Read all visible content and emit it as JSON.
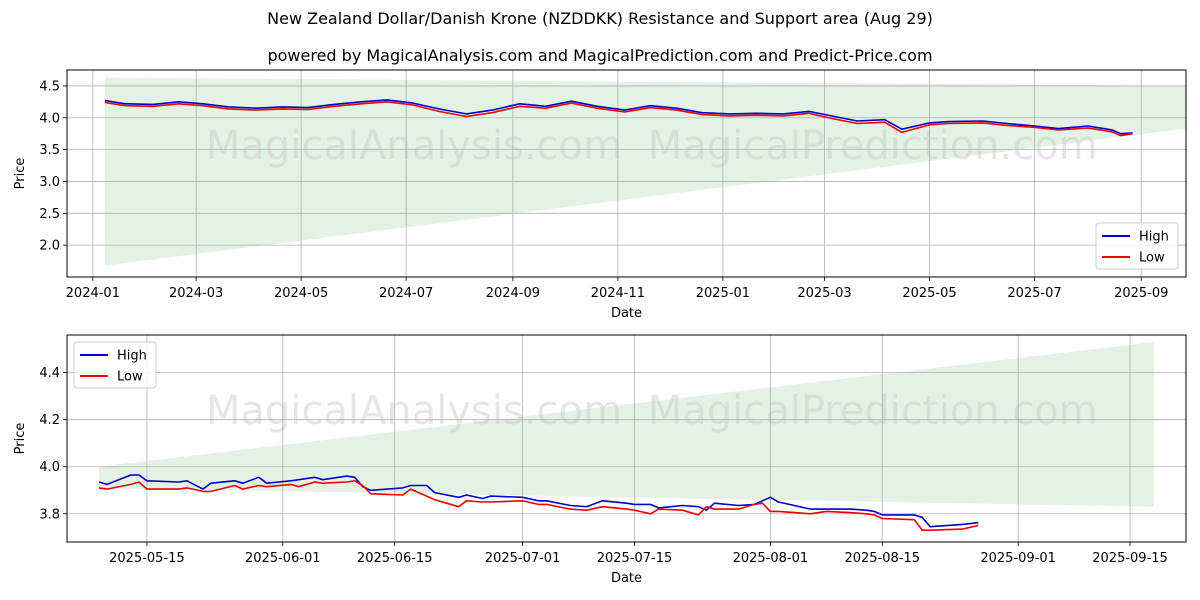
{
  "title": "New Zealand Dollar/Danish Krone (NZDDKK) Resistance and Support area (Aug 29)",
  "subtitle": "powered by MagicalAnalysis.com and MagicalPrediction.com and Predict-Price.com",
  "watermarks": [
    "MagicalAnalysis.com",
    "MagicalPrediction.com"
  ],
  "colors": {
    "high": "#0000cc",
    "low": "#ee0000",
    "band": "#c8e6c9"
  },
  "chart_data": [
    {
      "type": "line",
      "xlabel": "Date",
      "ylabel": "Price",
      "xlim": [
        "2023-12-17",
        "2025-09-27"
      ],
      "ylim": [
        1.5,
        4.75
      ],
      "x_ticks": [
        "2024-01",
        "2024-03",
        "2024-05",
        "2024-07",
        "2024-09",
        "2024-11",
        "2025-01",
        "2025-03",
        "2025-05",
        "2025-07",
        "2025-09"
      ],
      "y_ticks": [
        2.0,
        2.5,
        3.0,
        3.5,
        4.0,
        4.5
      ],
      "grid": true,
      "legend_position": "lower-right",
      "band": {
        "x_start": "2024-01-08",
        "x_end": "2025-09-27",
        "upper_start": 4.63,
        "upper_end": 4.5,
        "lower_start": 1.68,
        "lower_end": 3.83
      },
      "series": [
        {
          "name": "High",
          "points": [
            [
              "2024-01-08",
              4.27
            ],
            [
              "2024-01-20",
              4.22
            ],
            [
              "2024-02-05",
              4.21
            ],
            [
              "2024-02-20",
              4.25
            ],
            [
              "2024-03-05",
              4.22
            ],
            [
              "2024-03-20",
              4.17
            ],
            [
              "2024-04-05",
              4.15
            ],
            [
              "2024-04-20",
              4.17
            ],
            [
              "2024-05-05",
              4.16
            ],
            [
              "2024-05-20",
              4.21
            ],
            [
              "2024-06-05",
              4.25
            ],
            [
              "2024-06-20",
              4.28
            ],
            [
              "2024-07-05",
              4.23
            ],
            [
              "2024-07-20",
              4.14
            ],
            [
              "2024-08-05",
              4.06
            ],
            [
              "2024-08-20",
              4.12
            ],
            [
              "2024-09-05",
              4.22
            ],
            [
              "2024-09-20",
              4.18
            ],
            [
              "2024-10-05",
              4.26
            ],
            [
              "2024-10-20",
              4.18
            ],
            [
              "2024-11-05",
              4.12
            ],
            [
              "2024-11-20",
              4.19
            ],
            [
              "2024-12-05",
              4.15
            ],
            [
              "2024-12-20",
              4.08
            ],
            [
              "2025-01-05",
              4.06
            ],
            [
              "2025-01-20",
              4.07
            ],
            [
              "2025-02-05",
              4.06
            ],
            [
              "2025-02-20",
              4.1
            ],
            [
              "2025-03-05",
              4.03
            ],
            [
              "2025-03-20",
              3.95
            ],
            [
              "2025-04-05",
              3.97
            ],
            [
              "2025-04-15",
              3.82
            ],
            [
              "2025-05-01",
              3.92
            ],
            [
              "2025-05-12",
              3.94
            ],
            [
              "2025-06-01",
              3.95
            ],
            [
              "2025-06-15",
              3.91
            ],
            [
              "2025-07-01",
              3.87
            ],
            [
              "2025-07-15",
              3.83
            ],
            [
              "2025-08-01",
              3.87
            ],
            [
              "2025-08-15",
              3.81
            ],
            [
              "2025-08-20",
              3.75
            ],
            [
              "2025-08-27",
              3.76
            ]
          ]
        },
        {
          "name": "Low",
          "points": [
            [
              "2024-01-08",
              4.24
            ],
            [
              "2024-01-20",
              4.19
            ],
            [
              "2024-02-05",
              4.18
            ],
            [
              "2024-02-20",
              4.22
            ],
            [
              "2024-03-05",
              4.19
            ],
            [
              "2024-03-20",
              4.14
            ],
            [
              "2024-04-05",
              4.12
            ],
            [
              "2024-04-20",
              4.14
            ],
            [
              "2024-05-05",
              4.13
            ],
            [
              "2024-05-20",
              4.18
            ],
            [
              "2024-06-05",
              4.22
            ],
            [
              "2024-06-20",
              4.25
            ],
            [
              "2024-07-05",
              4.2
            ],
            [
              "2024-07-20",
              4.1
            ],
            [
              "2024-08-05",
              4.02
            ],
            [
              "2024-08-20",
              4.08
            ],
            [
              "2024-09-05",
              4.18
            ],
            [
              "2024-09-20",
              4.15
            ],
            [
              "2024-10-05",
              4.23
            ],
            [
              "2024-10-20",
              4.15
            ],
            [
              "2024-11-05",
              4.09
            ],
            [
              "2024-11-20",
              4.16
            ],
            [
              "2024-12-05",
              4.12
            ],
            [
              "2024-12-20",
              4.05
            ],
            [
              "2025-01-05",
              4.03
            ],
            [
              "2025-01-20",
              4.04
            ],
            [
              "2025-02-05",
              4.03
            ],
            [
              "2025-02-20",
              4.07
            ],
            [
              "2025-03-05",
              3.99
            ],
            [
              "2025-03-20",
              3.91
            ],
            [
              "2025-04-05",
              3.93
            ],
            [
              "2025-04-15",
              3.77
            ],
            [
              "2025-05-01",
              3.89
            ],
            [
              "2025-05-12",
              3.91
            ],
            [
              "2025-06-01",
              3.92
            ],
            [
              "2025-06-15",
              3.88
            ],
            [
              "2025-07-01",
              3.85
            ],
            [
              "2025-07-15",
              3.81
            ],
            [
              "2025-08-01",
              3.84
            ],
            [
              "2025-08-15",
              3.78
            ],
            [
              "2025-08-20",
              3.72
            ],
            [
              "2025-08-27",
              3.75
            ]
          ]
        }
      ]
    },
    {
      "type": "line",
      "xlabel": "Date",
      "ylabel": "Price",
      "xlim": [
        "2025-05-05",
        "2025-09-22"
      ],
      "ylim": [
        3.68,
        4.56
      ],
      "x_ticks": [
        "2025-05-15",
        "2025-06-01",
        "2025-06-15",
        "2025-07-01",
        "2025-07-15",
        "2025-08-01",
        "2025-08-15",
        "2025-09-01",
        "2025-09-15"
      ],
      "y_ticks": [
        3.8,
        4.0,
        4.2,
        4.4
      ],
      "grid": true,
      "legend_position": "upper-left",
      "band": {
        "x_start": "2025-05-09",
        "x_end": "2025-09-18",
        "upper_start": 4.0,
        "upper_end": 4.53,
        "lower_start": 3.91,
        "lower_end": 3.83
      },
      "series": [
        {
          "name": "High",
          "points": [
            [
              "2025-05-09",
              3.935
            ],
            [
              "2025-05-10",
              3.925
            ],
            [
              "2025-05-13",
              3.965
            ],
            [
              "2025-05-14",
              3.965
            ],
            [
              "2025-05-15",
              3.94
            ],
            [
              "2025-05-19",
              3.935
            ],
            [
              "2025-05-20",
              3.94
            ],
            [
              "2025-05-22",
              3.905
            ],
            [
              "2025-05-23",
              3.93
            ],
            [
              "2025-05-26",
              3.94
            ],
            [
              "2025-05-27",
              3.93
            ],
            [
              "2025-05-29",
              3.955
            ],
            [
              "2025-05-30",
              3.93
            ],
            [
              "2025-06-02",
              3.94
            ],
            [
              "2025-06-03",
              3.945
            ],
            [
              "2025-06-05",
              3.955
            ],
            [
              "2025-06-06",
              3.945
            ],
            [
              "2025-06-09",
              3.96
            ],
            [
              "2025-06-10",
              3.955
            ],
            [
              "2025-06-11",
              3.915
            ],
            [
              "2025-06-12",
              3.9
            ],
            [
              "2025-06-16",
              3.91
            ],
            [
              "2025-06-17",
              3.92
            ],
            [
              "2025-06-19",
              3.92
            ],
            [
              "2025-06-20",
              3.89
            ],
            [
              "2025-06-23",
              3.87
            ],
            [
              "2025-06-24",
              3.88
            ],
            [
              "2025-06-26",
              3.865
            ],
            [
              "2025-06-27",
              3.875
            ],
            [
              "2025-07-01",
              3.87
            ],
            [
              "2025-07-03",
              3.855
            ],
            [
              "2025-07-04",
              3.855
            ],
            [
              "2025-07-07",
              3.835
            ],
            [
              "2025-07-09",
              3.83
            ],
            [
              "2025-07-11",
              3.855
            ],
            [
              "2025-07-14",
              3.845
            ],
            [
              "2025-07-15",
              3.84
            ],
            [
              "2025-07-17",
              3.84
            ],
            [
              "2025-07-18",
              3.825
            ],
            [
              "2025-07-21",
              3.835
            ],
            [
              "2025-07-23",
              3.83
            ],
            [
              "2025-07-24",
              3.815
            ],
            [
              "2025-07-25",
              3.845
            ],
            [
              "2025-07-28",
              3.835
            ],
            [
              "2025-07-30",
              3.84
            ],
            [
              "2025-07-31",
              3.855
            ],
            [
              "2025-08-01",
              3.87
            ],
            [
              "2025-08-02",
              3.85
            ],
            [
              "2025-08-04",
              3.835
            ],
            [
              "2025-08-06",
              3.82
            ],
            [
              "2025-08-08",
              3.82
            ],
            [
              "2025-08-11",
              3.82
            ],
            [
              "2025-08-13",
              3.815
            ],
            [
              "2025-08-14",
              3.81
            ],
            [
              "2025-08-15",
              3.795
            ],
            [
              "2025-08-19",
              3.795
            ],
            [
              "2025-08-20",
              3.785
            ],
            [
              "2025-08-21",
              3.745
            ],
            [
              "2025-08-25",
              3.755
            ],
            [
              "2025-08-27",
              3.762
            ]
          ]
        },
        {
          "name": "Low",
          "points": [
            [
              "2025-05-09",
              3.91
            ],
            [
              "2025-05-10",
              3.905
            ],
            [
              "2025-05-13",
              3.925
            ],
            [
              "2025-05-14",
              3.935
            ],
            [
              "2025-05-15",
              3.905
            ],
            [
              "2025-05-19",
              3.905
            ],
            [
              "2025-05-20",
              3.91
            ],
            [
              "2025-05-22",
              3.895
            ],
            [
              "2025-05-23",
              3.895
            ],
            [
              "2025-05-26",
              3.92
            ],
            [
              "2025-05-27",
              3.905
            ],
            [
              "2025-05-29",
              3.92
            ],
            [
              "2025-05-30",
              3.915
            ],
            [
              "2025-06-02",
              3.925
            ],
            [
              "2025-06-03",
              3.915
            ],
            [
              "2025-06-05",
              3.935
            ],
            [
              "2025-06-06",
              3.93
            ],
            [
              "2025-06-09",
              3.935
            ],
            [
              "2025-06-10",
              3.94
            ],
            [
              "2025-06-11",
              3.92
            ],
            [
              "2025-06-12",
              3.885
            ],
            [
              "2025-06-16",
              3.88
            ],
            [
              "2025-06-17",
              3.905
            ],
            [
              "2025-06-19",
              3.875
            ],
            [
              "2025-06-20",
              3.86
            ],
            [
              "2025-06-23",
              3.83
            ],
            [
              "2025-06-24",
              3.855
            ],
            [
              "2025-06-26",
              3.85
            ],
            [
              "2025-06-27",
              3.85
            ],
            [
              "2025-07-01",
              3.855
            ],
            [
              "2025-07-03",
              3.84
            ],
            [
              "2025-07-04",
              3.84
            ],
            [
              "2025-07-07",
              3.82
            ],
            [
              "2025-07-09",
              3.815
            ],
            [
              "2025-07-11",
              3.83
            ],
            [
              "2025-07-14",
              3.82
            ],
            [
              "2025-07-15",
              3.815
            ],
            [
              "2025-07-17",
              3.8
            ],
            [
              "2025-07-18",
              3.82
            ],
            [
              "2025-07-21",
              3.815
            ],
            [
              "2025-07-23",
              3.795
            ],
            [
              "2025-07-24",
              3.83
            ],
            [
              "2025-07-25",
              3.82
            ],
            [
              "2025-07-28",
              3.82
            ],
            [
              "2025-07-30",
              3.84
            ],
            [
              "2025-07-31",
              3.845
            ],
            [
              "2025-08-01",
              3.81
            ],
            [
              "2025-08-02",
              3.81
            ],
            [
              "2025-08-04",
              3.805
            ],
            [
              "2025-08-06",
              3.8
            ],
            [
              "2025-08-08",
              3.81
            ],
            [
              "2025-08-11",
              3.805
            ],
            [
              "2025-08-13",
              3.8
            ],
            [
              "2025-08-14",
              3.795
            ],
            [
              "2025-08-15",
              3.78
            ],
            [
              "2025-08-19",
              3.775
            ],
            [
              "2025-08-20",
              3.73
            ],
            [
              "2025-08-21",
              3.73
            ],
            [
              "2025-08-25",
              3.735
            ],
            [
              "2025-08-27",
              3.75
            ]
          ]
        }
      ]
    }
  ]
}
